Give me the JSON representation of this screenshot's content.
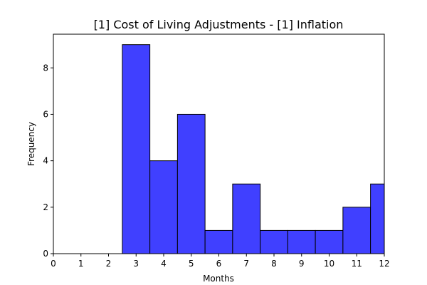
{
  "chart_data": {
    "type": "bar",
    "title": "[1] Cost of Living Adjustments - [1] Inflation",
    "xlabel": "Months",
    "ylabel": "Frequency",
    "xlim": [
      0,
      12
    ],
    "ylim": [
      0,
      9.45
    ],
    "xticks": [
      "0",
      "1",
      "2",
      "3",
      "4",
      "5",
      "6",
      "7",
      "8",
      "9",
      "10",
      "11",
      "12"
    ],
    "yticks": [
      "0",
      "2",
      "4",
      "6",
      "8"
    ],
    "bins": [
      {
        "x0": 2.5,
        "x1": 3.5,
        "value": 9
      },
      {
        "x0": 3.5,
        "x1": 4.5,
        "value": 4
      },
      {
        "x0": 4.5,
        "x1": 5.5,
        "value": 6
      },
      {
        "x0": 5.5,
        "x1": 6.5,
        "value": 1
      },
      {
        "x0": 6.5,
        "x1": 7.5,
        "value": 3
      },
      {
        "x0": 7.5,
        "x1": 8.5,
        "value": 1
      },
      {
        "x0": 8.5,
        "x1": 9.5,
        "value": 1
      },
      {
        "x0": 9.5,
        "x1": 10.5,
        "value": 1
      },
      {
        "x0": 10.5,
        "x1": 11.5,
        "value": 2
      },
      {
        "x0": 11.5,
        "x1": 12.5,
        "value": 3
      }
    ],
    "bar_color": "#4040ff",
    "edge_color": "#000000",
    "grid": false,
    "legend": "none"
  }
}
